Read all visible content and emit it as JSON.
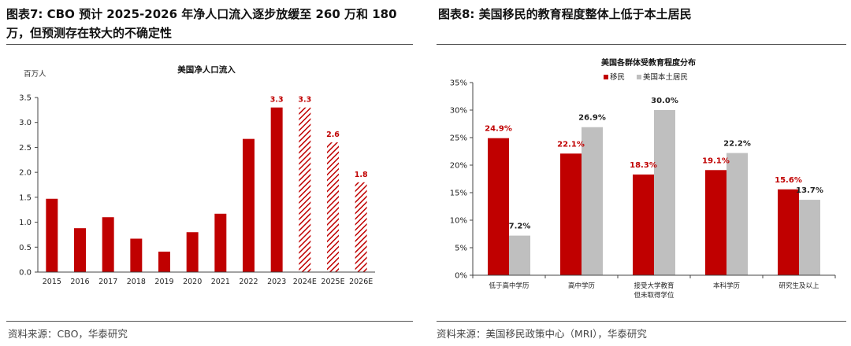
{
  "figures": [
    {
      "title": "图表7:  CBO 预计 2025-2026 年净人口流入逐步放缓至 260 万和 180 万，但预测存在较大的不确定性",
      "source": "资料来源：CBO，华泰研究",
      "chart_title": "美国净人口流入",
      "unit_label": "百万人"
    },
    {
      "title": "图表8:  美国移民的教育程度整体上低于本土居民",
      "source": "资料来源：美国移民政策中心（MRI），华泰研究",
      "chart_title": "美国各群体受教育程度分布"
    }
  ],
  "chart_data": [
    {
      "type": "bar",
      "title": "美国净人口流入",
      "ylabel": "百万人",
      "categories": [
        "2015",
        "2016",
        "2017",
        "2018",
        "2019",
        "2020",
        "2021",
        "2022",
        "2023",
        "2024E",
        "2025E",
        "2026E"
      ],
      "values": [
        1.47,
        0.88,
        1.1,
        0.67,
        0.41,
        0.8,
        1.17,
        2.67,
        3.3,
        3.3,
        2.6,
        1.8
      ],
      "data_labels": [
        "",
        "",
        "",
        "",
        "",
        "",
        "",
        "",
        "3.3",
        "3.3",
        "2.6",
        "1.8"
      ],
      "hatched": [
        false,
        false,
        false,
        false,
        false,
        false,
        false,
        false,
        false,
        true,
        true,
        true
      ],
      "yticks": [
        "0.0",
        "0.5",
        "1.0",
        "1.5",
        "2.0",
        "2.5",
        "3.0",
        "3.5"
      ],
      "ylim": [
        0,
        3.5
      ],
      "colors": {
        "bar": "#c00000",
        "label": "#c00000"
      },
      "grid": false
    },
    {
      "type": "bar",
      "title": "美国各群体受教育程度分布",
      "categories": [
        "低于高中学历",
        "高中学历",
        "接受大学教育\n但未取得学位",
        "本科学历",
        "研究生及以上"
      ],
      "series": [
        {
          "name": "移民",
          "values": [
            24.9,
            22.1,
            18.3,
            19.1,
            15.6
          ],
          "labels": [
            "24.9%",
            "22.1%",
            "18.3%",
            "19.1%",
            "15.6%"
          ],
          "color": "#c00000"
        },
        {
          "name": "美国本土居民",
          "values": [
            7.2,
            26.9,
            30.0,
            22.2,
            13.7
          ],
          "labels": [
            "7.2%",
            "26.9%",
            "30.0%",
            "22.2%",
            "13.7%"
          ],
          "color": "#bfbfbf"
        }
      ],
      "yticks": [
        "0%",
        "5%",
        "10%",
        "15%",
        "20%",
        "25%",
        "30%",
        "35%"
      ],
      "ylim": [
        0,
        35
      ],
      "legend": "top-center",
      "grid": false
    }
  ]
}
